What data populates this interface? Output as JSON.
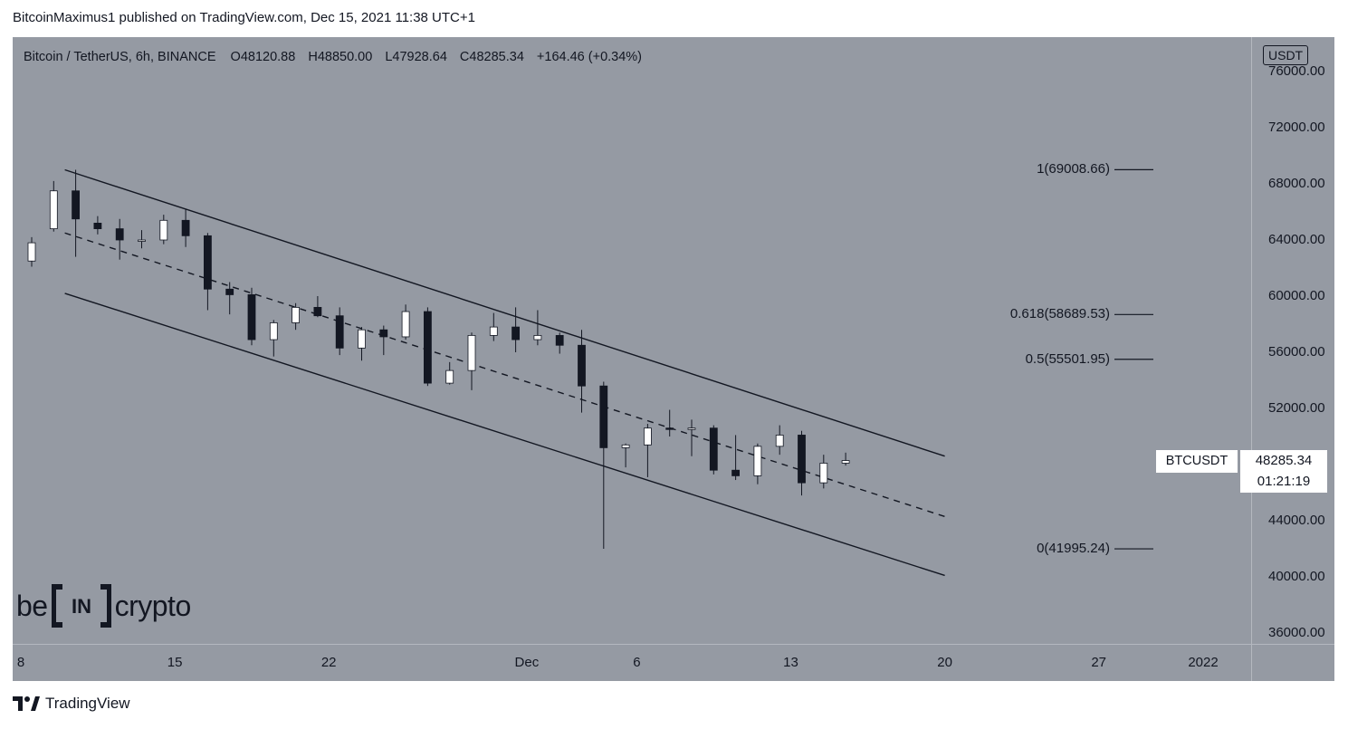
{
  "header": {
    "publish_text": "BitcoinMaximus1 published on TradingView.com, Dec 15, 2021 11:38 UTC+1"
  },
  "legend": {
    "symbol": "Bitcoin / TetherUS, 6h, BINANCE",
    "open_label": "O",
    "open": "48120.88",
    "high_label": "H",
    "high": "48850.00",
    "low_label": "L",
    "low": "47928.64",
    "close_label": "C",
    "close": "48285.34",
    "change": "+164.46 (+0.34%)"
  },
  "currency": "USDT",
  "y_axis_labels": [
    "76000.00",
    "72000.00",
    "68000.00",
    "64000.00",
    "60000.00",
    "56000.00",
    "52000.00",
    "48000.00",
    "44000.00",
    "40000.00",
    "36000.00"
  ],
  "x_axis_labels": [
    "8",
    "15",
    "22",
    "Dec",
    "6",
    "13",
    "20",
    "27",
    "2022"
  ],
  "fib_levels": [
    {
      "label": "1(69008.66)",
      "price": 69008.66
    },
    {
      "label": "0.618(58689.53)",
      "price": 58689.53
    },
    {
      "label": "0.5(55501.95)",
      "price": 55501.95
    },
    {
      "label": "0(41995.24)",
      "price": 41995.24
    }
  ],
  "last_price": {
    "symbol": "BTCUSDT",
    "price": "48285.34",
    "countdown": "01:21:19"
  },
  "brand": {
    "left": "be",
    "middle": "IN",
    "right": "crypto"
  },
  "footer": {
    "text": "TradingView"
  },
  "colors": {
    "background": "#959aa3",
    "candle_up": "#ffffff",
    "candle_down": "#131722",
    "line": "#131722"
  },
  "chart_data": {
    "type": "candlestick",
    "title": "Bitcoin / TetherUS, 6h, BINANCE",
    "timeframe": "6h",
    "ylim": [
      36000,
      78000
    ],
    "x_range_days": [
      "2021-11-08",
      "2022-01-01"
    ],
    "channel": {
      "upper": [
        {
          "date": "2021-11-10",
          "price": 69000
        },
        {
          "date": "2021-12-20",
          "price": 48600
        }
      ],
      "middle": [
        {
          "date": "2021-11-10",
          "price": 64500
        },
        {
          "date": "2021-12-20",
          "price": 44300
        }
      ],
      "lower": [
        {
          "date": "2021-11-10",
          "price": 60200
        },
        {
          "date": "2021-12-20",
          "price": 40100
        }
      ]
    },
    "candles_daily_approx": [
      {
        "d": "11-08",
        "o": 62500,
        "h": 64200,
        "l": 62100,
        "c": 63800
      },
      {
        "d": "11-09",
        "o": 64800,
        "h": 68200,
        "l": 64600,
        "c": 67500
      },
      {
        "d": "11-10",
        "o": 67500,
        "h": 69000,
        "l": 62800,
        "c": 65500
      },
      {
        "d": "11-11",
        "o": 65200,
        "h": 65700,
        "l": 64400,
        "c": 64800
      },
      {
        "d": "11-12",
        "o": 64800,
        "h": 65500,
        "l": 62600,
        "c": 64000
      },
      {
        "d": "11-13",
        "o": 64000,
        "h": 64700,
        "l": 63400,
        "c": 64000
      },
      {
        "d": "11-14",
        "o": 64000,
        "h": 65800,
        "l": 63700,
        "c": 65400
      },
      {
        "d": "11-15",
        "o": 65400,
        "h": 66200,
        "l": 63500,
        "c": 64300
      },
      {
        "d": "11-16",
        "o": 64300,
        "h": 64500,
        "l": 59000,
        "c": 60500
      },
      {
        "d": "11-17",
        "o": 60500,
        "h": 61000,
        "l": 58700,
        "c": 60100
      },
      {
        "d": "11-18",
        "o": 60100,
        "h": 60600,
        "l": 56500,
        "c": 56900
      },
      {
        "d": "11-19",
        "o": 56900,
        "h": 58300,
        "l": 55700,
        "c": 58100
      },
      {
        "d": "11-20",
        "o": 58100,
        "h": 59500,
        "l": 57600,
        "c": 59200
      },
      {
        "d": "11-21",
        "o": 59200,
        "h": 60000,
        "l": 58500,
        "c": 58600
      },
      {
        "d": "11-22",
        "o": 58600,
        "h": 59200,
        "l": 55800,
        "c": 56300
      },
      {
        "d": "11-23",
        "o": 56300,
        "h": 57800,
        "l": 55400,
        "c": 57600
      },
      {
        "d": "11-24",
        "o": 57600,
        "h": 57900,
        "l": 55800,
        "c": 57100
      },
      {
        "d": "11-25",
        "o": 57100,
        "h": 59400,
        "l": 56900,
        "c": 58900
      },
      {
        "d": "11-26",
        "o": 58900,
        "h": 59200,
        "l": 53600,
        "c": 53800
      },
      {
        "d": "11-27",
        "o": 53800,
        "h": 55300,
        "l": 53700,
        "c": 54700
      },
      {
        "d": "11-28",
        "o": 54700,
        "h": 57400,
        "l": 53300,
        "c": 57200
      },
      {
        "d": "11-29",
        "o": 57200,
        "h": 58800,
        "l": 56800,
        "c": 57800
      },
      {
        "d": "11-30",
        "o": 57800,
        "h": 59200,
        "l": 56000,
        "c": 56900
      },
      {
        "d": "12-01",
        "o": 56900,
        "h": 59000,
        "l": 56500,
        "c": 57200
      },
      {
        "d": "12-02",
        "o": 57200,
        "h": 57400,
        "l": 55900,
        "c": 56500
      },
      {
        "d": "12-03",
        "o": 56500,
        "h": 57600,
        "l": 51700,
        "c": 53600
      },
      {
        "d": "12-04",
        "o": 53600,
        "h": 53900,
        "l": 42000,
        "c": 49200
      },
      {
        "d": "12-05",
        "o": 49200,
        "h": 49500,
        "l": 47800,
        "c": 49400
      },
      {
        "d": "12-06",
        "o": 49400,
        "h": 50900,
        "l": 47100,
        "c": 50600
      },
      {
        "d": "12-07",
        "o": 50600,
        "h": 51900,
        "l": 50000,
        "c": 50500
      },
      {
        "d": "12-08",
        "o": 50500,
        "h": 51200,
        "l": 48600,
        "c": 50600
      },
      {
        "d": "12-09",
        "o": 50600,
        "h": 50800,
        "l": 47300,
        "c": 47600
      },
      {
        "d": "12-10",
        "o": 47600,
        "h": 50100,
        "l": 46900,
        "c": 47200
      },
      {
        "d": "12-11",
        "o": 47200,
        "h": 49500,
        "l": 46600,
        "c": 49300
      },
      {
        "d": "12-12",
        "o": 49300,
        "h": 50800,
        "l": 48700,
        "c": 50100
      },
      {
        "d": "12-13",
        "o": 50100,
        "h": 50400,
        "l": 45800,
        "c": 46700
      },
      {
        "d": "12-14",
        "o": 46700,
        "h": 48700,
        "l": 46300,
        "c": 48100
      },
      {
        "d": "12-15",
        "o": 48100,
        "h": 48850,
        "l": 47928.64,
        "c": 48285.34
      }
    ]
  }
}
